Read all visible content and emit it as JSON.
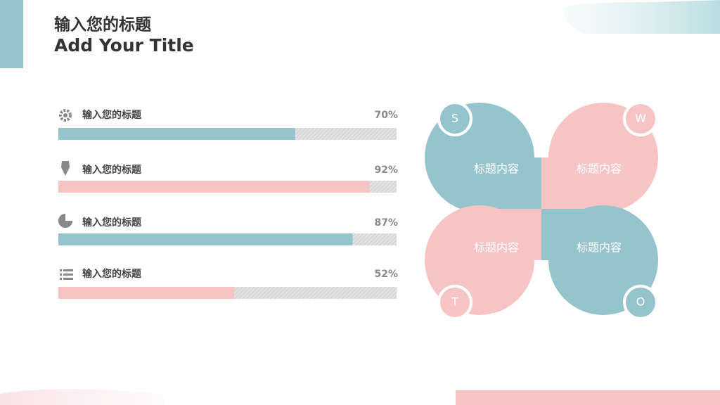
{
  "header": {
    "title": "输入您的标题",
    "subtitle": "Add Your Title"
  },
  "chart_data": {
    "type": "progress",
    "categories": [
      "输入您的标题",
      "输入您的标题",
      "输入您的标题",
      "输入您的标题"
    ],
    "values": [
      70,
      92,
      87,
      52
    ],
    "value_labels": [
      "70%",
      "92%",
      "87%",
      "52%"
    ],
    "colors": [
      "#96c4cd",
      "#f6c4c5",
      "#96c4cd",
      "#f6c4c5"
    ],
    "xlim": [
      0,
      100
    ]
  },
  "swot": [
    {
      "letter": "S",
      "text": "标题内容"
    },
    {
      "letter": "W",
      "text": "标题内容"
    },
    {
      "letter": "T",
      "text": "标题内容"
    },
    {
      "letter": "O",
      "text": "标题内容"
    }
  ]
}
